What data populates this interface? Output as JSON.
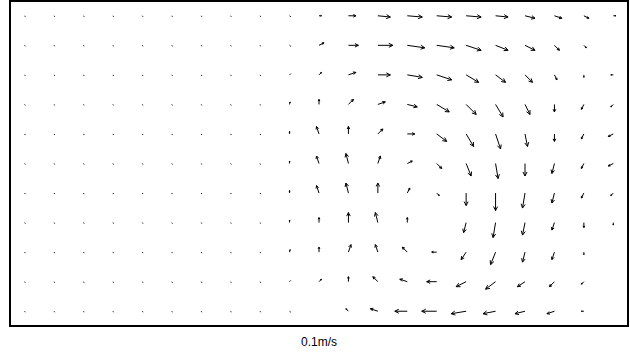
{
  "chart_data": {
    "type": "quiver",
    "tick_labels": false,
    "color": "#000000",
    "xlim": [
      0,
      21
    ],
    "ylim": [
      0,
      11
    ],
    "x": [
      0.5,
      1.5,
      2.5,
      3.5,
      4.5,
      5.5,
      6.5,
      7.5,
      8.5,
      9.5,
      10.5,
      11.5,
      12.5,
      13.5,
      14.5,
      15.5,
      16.5,
      17.5,
      18.5,
      19.5,
      20.5
    ],
    "y": [
      10.5,
      9.5,
      8.5,
      7.5,
      6.5,
      5.5,
      4.5,
      3.5,
      2.5,
      1.5,
      0.5
    ],
    "reference": {
      "value": 0.1,
      "label": "0.1m/s"
    },
    "u": [
      [
        0.002,
        0.002,
        0.002,
        0.002,
        0.002,
        0.002,
        0.002,
        0.002,
        0.002,
        0.005,
        0.01,
        0.03,
        0.05,
        0.06,
        0.06,
        0.06,
        0.05,
        0.04,
        0.03,
        0.02,
        0.01
      ],
      [
        0.002,
        0.002,
        0.002,
        0.002,
        0.002,
        0.002,
        0.002,
        0.002,
        0.002,
        0.005,
        0.02,
        0.04,
        0.06,
        0.07,
        0.07,
        0.06,
        0.05,
        0.04,
        0.02,
        0.01,
        0.0
      ],
      [
        0.002,
        0.002,
        0.002,
        0.002,
        0.002,
        0.002,
        0.002,
        0.002,
        0.002,
        0.005,
        0.01,
        0.03,
        0.05,
        0.06,
        0.06,
        0.05,
        0.04,
        0.03,
        0.01,
        0.0,
        -0.01
      ],
      [
        0.002,
        0.002,
        0.002,
        0.002,
        0.002,
        0.002,
        0.002,
        0.002,
        0.002,
        0.002,
        0.0,
        0.02,
        0.03,
        0.04,
        0.05,
        0.04,
        0.03,
        0.02,
        0.0,
        -0.01,
        -0.01
      ],
      [
        0.002,
        0.002,
        0.002,
        0.002,
        0.002,
        0.002,
        0.002,
        0.002,
        0.002,
        0.0,
        -0.01,
        0.0,
        0.02,
        0.03,
        0.04,
        0.03,
        0.02,
        0.01,
        0.0,
        -0.01,
        -0.02
      ],
      [
        0.002,
        0.002,
        0.002,
        0.002,
        0.002,
        0.002,
        0.002,
        0.002,
        0.002,
        0.0,
        -0.01,
        -0.01,
        0.01,
        0.02,
        0.02,
        0.02,
        0.01,
        0.0,
        -0.01,
        -0.01,
        -0.02
      ],
      [
        0.002,
        0.002,
        0.002,
        0.002,
        0.002,
        0.002,
        0.002,
        0.002,
        0.002,
        0.0,
        -0.01,
        -0.01,
        0.0,
        0.01,
        0.01,
        0.0,
        0.0,
        -0.01,
        -0.01,
        -0.01,
        -0.01
      ],
      [
        0.002,
        0.002,
        0.002,
        0.002,
        0.002,
        0.002,
        0.002,
        0.002,
        0.002,
        0.0,
        0.0,
        0.0,
        -0.01,
        0.0,
        0.0,
        -0.01,
        -0.01,
        -0.01,
        -0.01,
        0.0,
        0.0
      ],
      [
        0.002,
        0.002,
        0.002,
        0.002,
        0.002,
        0.002,
        0.002,
        0.002,
        0.002,
        0.002,
        0.0,
        0.01,
        -0.01,
        -0.02,
        -0.02,
        -0.02,
        -0.02,
        -0.01,
        -0.01,
        0.0,
        0.0
      ],
      [
        0.002,
        0.002,
        0.002,
        0.002,
        0.002,
        0.002,
        0.002,
        0.002,
        0.002,
        0.005,
        0.01,
        0.0,
        -0.02,
        -0.03,
        -0.04,
        -0.04,
        -0.04,
        -0.03,
        -0.02,
        -0.01,
        0.0
      ],
      [
        0.002,
        0.002,
        0.002,
        0.002,
        0.002,
        0.002,
        0.002,
        0.002,
        0.002,
        0.005,
        0.0,
        -0.01,
        -0.03,
        -0.05,
        -0.06,
        -0.06,
        -0.05,
        -0.04,
        -0.03,
        -0.01,
        0.0
      ]
    ],
    "v": [
      [
        -0.004,
        -0.004,
        -0.004,
        -0.004,
        -0.004,
        -0.004,
        -0.004,
        -0.004,
        -0.004,
        -0.004,
        0.0,
        0.0,
        -0.005,
        -0.005,
        -0.005,
        -0.005,
        -0.005,
        -0.01,
        -0.01,
        -0.01,
        0.0
      ],
      [
        -0.004,
        -0.004,
        -0.004,
        -0.004,
        -0.004,
        -0.004,
        -0.004,
        -0.004,
        -0.004,
        -0.004,
        0.01,
        0.0,
        0.0,
        -0.01,
        -0.01,
        -0.02,
        -0.02,
        -0.02,
        -0.02,
        -0.01,
        0.0
      ],
      [
        -0.004,
        -0.004,
        -0.004,
        -0.004,
        -0.004,
        -0.004,
        -0.004,
        -0.004,
        -0.004,
        0.005,
        0.01,
        0.01,
        0.0,
        -0.01,
        -0.02,
        -0.03,
        -0.03,
        -0.03,
        -0.02,
        -0.01,
        0.0
      ],
      [
        -0.004,
        -0.004,
        -0.004,
        -0.004,
        -0.004,
        -0.004,
        -0.004,
        -0.004,
        -0.004,
        0.01,
        0.02,
        0.02,
        0.01,
        -0.01,
        -0.03,
        -0.04,
        -0.05,
        -0.04,
        -0.03,
        -0.02,
        -0.01
      ],
      [
        -0.004,
        -0.004,
        -0.004,
        -0.004,
        -0.004,
        -0.004,
        -0.004,
        -0.004,
        -0.004,
        0.01,
        0.03,
        0.03,
        0.02,
        0.0,
        -0.03,
        -0.05,
        -0.06,
        -0.05,
        -0.03,
        -0.02,
        -0.01
      ],
      [
        -0.004,
        -0.004,
        -0.004,
        -0.004,
        -0.004,
        -0.004,
        -0.004,
        -0.004,
        -0.004,
        0.01,
        0.03,
        0.04,
        0.03,
        0.01,
        -0.02,
        -0.05,
        -0.06,
        -0.05,
        -0.04,
        -0.02,
        -0.01
      ],
      [
        -0.004,
        -0.004,
        -0.004,
        -0.004,
        -0.004,
        -0.004,
        -0.004,
        -0.004,
        -0.004,
        0.01,
        0.03,
        0.04,
        0.04,
        0.02,
        -0.01,
        -0.05,
        -0.07,
        -0.06,
        -0.04,
        -0.02,
        -0.01
      ],
      [
        -0.004,
        -0.004,
        -0.004,
        -0.004,
        -0.004,
        -0.004,
        -0.004,
        -0.004,
        -0.004,
        0.01,
        0.02,
        0.04,
        0.04,
        0.02,
        0.0,
        -0.04,
        -0.06,
        -0.05,
        -0.03,
        -0.02,
        -0.01
      ],
      [
        -0.004,
        -0.004,
        -0.004,
        -0.004,
        -0.004,
        -0.004,
        -0.004,
        -0.004,
        -0.004,
        0.01,
        0.02,
        0.03,
        0.03,
        0.02,
        0.0,
        -0.03,
        -0.05,
        -0.04,
        -0.03,
        -0.01,
        0.0
      ],
      [
        -0.004,
        -0.004,
        -0.004,
        -0.004,
        -0.004,
        -0.004,
        -0.004,
        -0.004,
        -0.004,
        0.005,
        0.01,
        0.02,
        0.02,
        0.01,
        0.0,
        -0.02,
        -0.03,
        -0.02,
        -0.02,
        -0.01,
        0.0
      ],
      [
        -0.004,
        -0.004,
        -0.004,
        -0.004,
        -0.004,
        -0.004,
        -0.004,
        -0.004,
        -0.004,
        -0.004,
        0.0,
        0.01,
        0.01,
        0.0,
        0.0,
        -0.01,
        -0.01,
        -0.01,
        -0.01,
        0.0,
        0.0
      ]
    ]
  }
}
